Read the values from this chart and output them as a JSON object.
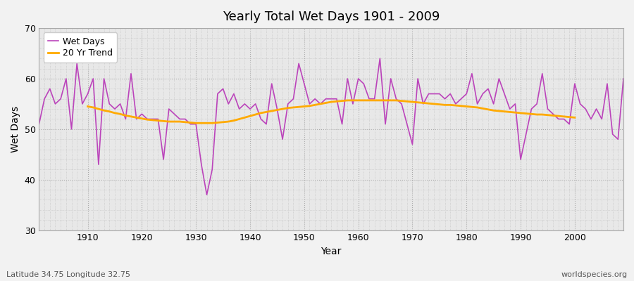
{
  "title": "Yearly Total Wet Days 1901 - 2009",
  "xlabel": "Year",
  "ylabel": "Wet Days",
  "subtitle_left": "Latitude 34.75 Longitude 32.75",
  "subtitle_right": "worldspecies.org",
  "ylim": [
    30,
    70
  ],
  "yticks": [
    30,
    40,
    50,
    60,
    70
  ],
  "wet_days_color": "#bb44bb",
  "trend_color": "#ffaa00",
  "fig_bg_color": "#f0f0f0",
  "plot_bg_color": "#e8e8e8",
  "years": [
    1901,
    1902,
    1903,
    1904,
    1905,
    1906,
    1907,
    1908,
    1909,
    1910,
    1911,
    1912,
    1913,
    1914,
    1915,
    1916,
    1917,
    1918,
    1919,
    1920,
    1921,
    1922,
    1923,
    1924,
    1925,
    1926,
    1927,
    1928,
    1929,
    1930,
    1931,
    1932,
    1933,
    1934,
    1935,
    1936,
    1937,
    1938,
    1939,
    1940,
    1941,
    1942,
    1943,
    1944,
    1945,
    1946,
    1947,
    1948,
    1949,
    1950,
    1951,
    1952,
    1953,
    1954,
    1955,
    1956,
    1957,
    1958,
    1959,
    1960,
    1961,
    1962,
    1963,
    1964,
    1965,
    1966,
    1967,
    1968,
    1969,
    1970,
    1971,
    1972,
    1973,
    1974,
    1975,
    1976,
    1977,
    1978,
    1979,
    1980,
    1981,
    1982,
    1983,
    1984,
    1985,
    1986,
    1987,
    1988,
    1989,
    1990,
    1991,
    1992,
    1993,
    1994,
    1995,
    1996,
    1997,
    1998,
    1999,
    2000,
    2001,
    2002,
    2003,
    2004,
    2005,
    2006,
    2007,
    2008,
    2009
  ],
  "wet_days": [
    51,
    56,
    58,
    55,
    56,
    60,
    50,
    63,
    55,
    57,
    60,
    43,
    60,
    55,
    54,
    55,
    52,
    61,
    52,
    53,
    52,
    52,
    52,
    44,
    54,
    53,
    52,
    52,
    51,
    51,
    43,
    37,
    42,
    57,
    58,
    55,
    57,
    54,
    55,
    54,
    55,
    52,
    51,
    59,
    54,
    48,
    55,
    56,
    63,
    59,
    55,
    56,
    55,
    56,
    56,
    56,
    51,
    60,
    55,
    60,
    59,
    56,
    56,
    64,
    51,
    60,
    56,
    55,
    51,
    47,
    60,
    55,
    57,
    57,
    57,
    56,
    57,
    55,
    56,
    57,
    61,
    55,
    57,
    58,
    55,
    60,
    57,
    54,
    55,
    44,
    49,
    54,
    55,
    61,
    54,
    53,
    52,
    52,
    51,
    59,
    55,
    54,
    52,
    54,
    52,
    59,
    49,
    48,
    60
  ],
  "trend_years": [
    1901,
    1902,
    1903,
    1904,
    1905,
    1906,
    1907,
    1908,
    1909,
    1910,
    1911,
    1912,
    1913,
    1914,
    1915,
    1916,
    1917,
    1918,
    1919,
    1920,
    1921,
    1922,
    1923,
    1924,
    1925,
    1926,
    1927,
    1928,
    1929,
    1930,
    1931,
    1932,
    1933,
    1934,
    1935,
    1936,
    1937,
    1938,
    1939,
    1940,
    1941,
    1942,
    1943,
    1944,
    1945,
    1946,
    1947,
    1948,
    1949,
    1950,
    1951,
    1952,
    1953,
    1954,
    1955,
    1956,
    1957,
    1958,
    1959,
    1960,
    1961,
    1962,
    1963,
    1964,
    1965,
    1966,
    1967,
    1968,
    1969,
    1970,
    1971,
    1972,
    1973,
    1974,
    1975,
    1976,
    1977,
    1978,
    1979,
    1980,
    1981,
    1982,
    1983,
    1984,
    1985,
    1986,
    1987,
    1988,
    1989,
    1990,
    1991,
    1992,
    1993,
    1994,
    1995,
    1996,
    1997,
    1998,
    1999,
    2000,
    2001,
    2002,
    2003,
    2004,
    2005,
    2006,
    2007,
    2008,
    2009
  ],
  "trend_values": [
    null,
    null,
    null,
    null,
    null,
    null,
    null,
    null,
    null,
    54.5,
    54.3,
    54.0,
    53.7,
    53.5,
    53.2,
    53.0,
    52.7,
    52.5,
    52.3,
    52.1,
    51.9,
    51.8,
    51.7,
    51.6,
    51.5,
    51.5,
    51.5,
    51.4,
    51.3,
    51.2,
    51.2,
    51.2,
    51.2,
    51.3,
    51.4,
    51.5,
    51.7,
    52.0,
    52.3,
    52.6,
    52.9,
    53.2,
    53.4,
    53.6,
    53.8,
    54.0,
    54.2,
    54.3,
    54.4,
    54.5,
    54.6,
    54.8,
    55.0,
    55.2,
    55.4,
    55.5,
    55.6,
    55.7,
    55.7,
    55.7,
    55.7,
    55.7,
    55.7,
    55.7,
    55.7,
    55.7,
    55.7,
    55.6,
    55.5,
    55.4,
    55.3,
    55.2,
    55.1,
    55.0,
    54.9,
    54.8,
    54.8,
    54.7,
    54.6,
    54.5,
    54.4,
    54.3,
    54.1,
    53.9,
    53.7,
    53.6,
    53.5,
    53.4,
    53.3,
    53.2,
    53.1,
    53.0,
    52.9,
    52.9,
    52.8,
    52.7,
    52.6,
    52.5,
    52.4,
    52.3,
    null,
    null,
    null,
    null,
    null,
    null,
    null,
    null,
    null
  ]
}
